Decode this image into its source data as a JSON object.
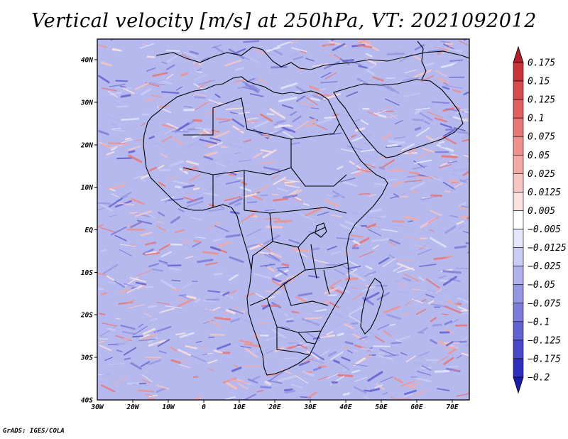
{
  "title": "Vertical velocity [m/s] at 250hPa, VT: 2021092012",
  "credit": "GrADS: IGES/COLA",
  "map": {
    "region": "Africa",
    "variable": "Vertical velocity",
    "units": "m/s",
    "level": "250hPa",
    "valid_time": "2021092012",
    "lon_range": [
      -30,
      75
    ],
    "lat_range": [
      -40,
      45
    ],
    "lat_labels": [
      {
        "value": 40,
        "text": "40N"
      },
      {
        "value": 30,
        "text": "30N"
      },
      {
        "value": 20,
        "text": "20N"
      },
      {
        "value": 10,
        "text": "10N"
      },
      {
        "value": 0,
        "text": "EQ"
      },
      {
        "value": -10,
        "text": "10S"
      },
      {
        "value": -20,
        "text": "20S"
      },
      {
        "value": -30,
        "text": "30S"
      },
      {
        "value": -40,
        "text": "40S"
      }
    ],
    "lon_labels": [
      {
        "value": -30,
        "text": "30W"
      },
      {
        "value": -20,
        "text": "20W"
      },
      {
        "value": -10,
        "text": "10W"
      },
      {
        "value": 0,
        "text": "0"
      },
      {
        "value": 10,
        "text": "10E"
      },
      {
        "value": 20,
        "text": "20E"
      },
      {
        "value": 30,
        "text": "30E"
      },
      {
        "value": 40,
        "text": "40E"
      },
      {
        "value": 50,
        "text": "50E"
      },
      {
        "value": 60,
        "text": "60E"
      },
      {
        "value": 70,
        "text": "70E"
      }
    ]
  },
  "colorbar": {
    "levels": [
      "0.175",
      "0.15",
      "0.125",
      "0.1",
      "0.075",
      "0.05",
      "0.025",
      "0.0125",
      "0.005",
      "−0.005",
      "−0.0125",
      "−0.025",
      "−0.05",
      "−0.075",
      "−0.1",
      "−0.125",
      "−0.175",
      "−0.2"
    ],
    "colors": [
      "#b21f2a",
      "#c8333a",
      "#d84b4c",
      "#e26060",
      "#e87775",
      "#ee918c",
      "#f3aaa5",
      "#f7c6c2",
      "#fbe2df",
      "#ffffff",
      "#e5e6fb",
      "#cbccf3",
      "#b0b2ec",
      "#9697e3",
      "#7c7ddb",
      "#6263d2",
      "#4849ca",
      "#2e2fbf",
      "#1b1cab"
    ]
  }
}
